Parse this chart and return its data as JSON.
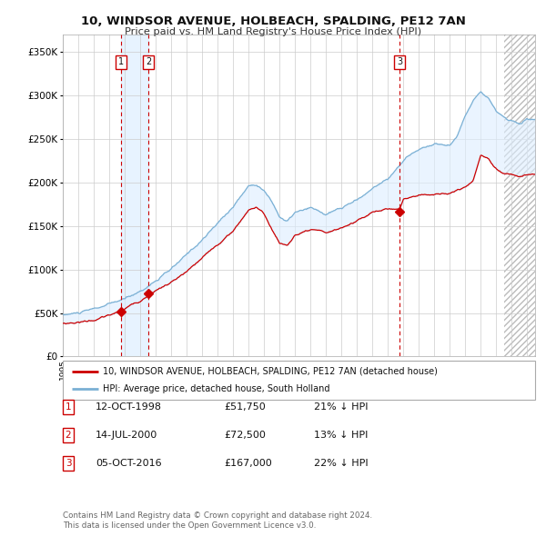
{
  "title": "10, WINDSOR AVENUE, HOLBEACH, SPALDING, PE12 7AN",
  "subtitle": "Price paid vs. HM Land Registry's House Price Index (HPI)",
  "ylim": [
    0,
    370000
  ],
  "yticks": [
    0,
    50000,
    100000,
    150000,
    200000,
    250000,
    300000,
    350000
  ],
  "ytick_labels": [
    "£0",
    "£50K",
    "£100K",
    "£150K",
    "£200K",
    "£250K",
    "£300K",
    "£350K"
  ],
  "xmin": 1995.0,
  "xmax": 2025.5,
  "sale_events": [
    {
      "date_num": 1998.78,
      "price": 51750,
      "label": "1"
    },
    {
      "date_num": 2000.54,
      "price": 72500,
      "label": "2"
    },
    {
      "date_num": 2016.76,
      "price": 167000,
      "label": "3"
    }
  ],
  "legend_red": "10, WINDSOR AVENUE, HOLBEACH, SPALDING, PE12 7AN (detached house)",
  "legend_blue": "HPI: Average price, detached house, South Holland",
  "table_rows": [
    {
      "num": "1",
      "date": "12-OCT-1998",
      "price": "£51,750",
      "note": "21% ↓ HPI"
    },
    {
      "num": "2",
      "date": "14-JUL-2000",
      "price": "£72,500",
      "note": "13% ↓ HPI"
    },
    {
      "num": "3",
      "date": "05-OCT-2016",
      "price": "£167,000",
      "note": "22% ↓ HPI"
    }
  ],
  "footnote1": "Contains HM Land Registry data © Crown copyright and database right 2024.",
  "footnote2": "This data is licensed under the Open Government Licence v3.0.",
  "bg_color": "#ffffff",
  "grid_color": "#cccccc",
  "red_color": "#cc0000",
  "blue_color": "#7ab0d4",
  "shade_color": "#ddeeff",
  "hatch_start": 2023.5
}
